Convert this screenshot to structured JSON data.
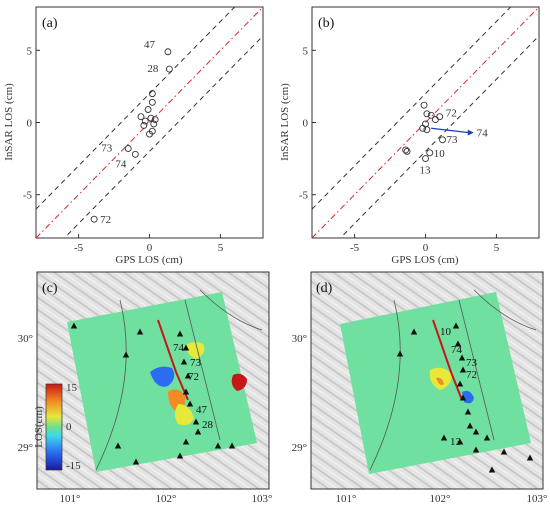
{
  "chart_data": [
    {
      "type": "scatter",
      "panel": "(a)",
      "xlabel": "GPS LOS (cm)",
      "ylabel": "InSAR LOS (cm)",
      "xlim": [
        -8,
        8
      ],
      "ylim": [
        -8,
        8
      ],
      "xticks": [
        "-5",
        "0",
        "5"
      ],
      "yticks": [
        "5",
        "0",
        "-5"
      ],
      "reference_lines": [
        {
          "style": "dash-dot",
          "color": "#d62728",
          "offset": 0
        },
        {
          "style": "dashed",
          "color": "#333333",
          "offset": 2
        },
        {
          "style": "dashed",
          "color": "#333333",
          "offset": -2
        }
      ],
      "points": [
        {
          "x": -3.9,
          "y": -6.7,
          "label": "72"
        },
        {
          "x": -1.5,
          "y": -1.8,
          "label": "73"
        },
        {
          "x": -1.0,
          "y": -2.2,
          "label": "74"
        },
        {
          "x": 1.3,
          "y": 4.9,
          "label": "47"
        },
        {
          "x": 1.4,
          "y": 3.7,
          "label": "28"
        },
        {
          "x": -0.6,
          "y": 0.4
        },
        {
          "x": -0.3,
          "y": 0.1
        },
        {
          "x": -0.4,
          "y": -0.2
        },
        {
          "x": -0.1,
          "y": 0.9
        },
        {
          "x": 0.2,
          "y": 2.0
        },
        {
          "x": 0.2,
          "y": 1.4
        },
        {
          "x": 0.1,
          "y": 0.3
        },
        {
          "x": 0.3,
          "y": -0.1
        },
        {
          "x": 0.4,
          "y": 0.2
        },
        {
          "x": 0.0,
          "y": -0.8
        },
        {
          "x": 0.2,
          "y": -0.6
        }
      ]
    },
    {
      "type": "scatter",
      "panel": "(b)",
      "xlabel": "GPS LOS (cm)",
      "ylabel": "InSAR LOS (cm)",
      "xlim": [
        -8,
        8
      ],
      "ylim": [
        -8,
        8
      ],
      "xticks": [
        "-5",
        "0",
        "5"
      ],
      "yticks": [
        "5",
        "0",
        "-5"
      ],
      "reference_lines": [
        {
          "style": "dash-dot",
          "color": "#d62728",
          "offset": 0
        },
        {
          "style": "dashed",
          "color": "#333333",
          "offset": 2
        },
        {
          "style": "dashed",
          "color": "#333333",
          "offset": -2
        }
      ],
      "arrow": {
        "from": [
          0.4,
          -0.4
        ],
        "to": [
          3.4,
          -0.7
        ],
        "color": "#1f3fb4",
        "label": "74"
      },
      "points": [
        {
          "x": 1.2,
          "y": -1.2,
          "label": "73"
        },
        {
          "x": 1.0,
          "y": 0.4,
          "label": "72"
        },
        {
          "x": 0.3,
          "y": -2.1,
          "label": "10"
        },
        {
          "x": 0.0,
          "y": -2.5,
          "label": "13"
        },
        {
          "x": -1.4,
          "y": -1.9
        },
        {
          "x": -1.3,
          "y": -2.0
        },
        {
          "x": -0.1,
          "y": 1.2
        },
        {
          "x": 0.1,
          "y": 0.6
        },
        {
          "x": 0.4,
          "y": 0.5
        },
        {
          "x": 0.7,
          "y": 0.2
        },
        {
          "x": 0.0,
          "y": -0.1
        },
        {
          "x": -0.2,
          "y": -0.4
        },
        {
          "x": 0.1,
          "y": -0.5
        }
      ]
    },
    {
      "type": "heatmap",
      "panel": "(c)",
      "xticks": [
        "101°",
        "102°",
        "103°"
      ],
      "yticks": [
        "30°",
        "29°"
      ],
      "colorbar": {
        "label": "LOS(cm)",
        "ticks": [
          "15",
          "0",
          "-15"
        ],
        "range": [
          -15,
          15
        ]
      },
      "station_labels": [
        "74",
        "73",
        "72",
        "47",
        "28"
      ]
    },
    {
      "type": "heatmap",
      "panel": "(d)",
      "xticks": [
        "101°",
        "102°",
        "103°"
      ],
      "yticks": [
        "30°",
        "29°"
      ],
      "station_labels": [
        "10",
        "74",
        "73",
        "72",
        "13"
      ]
    }
  ]
}
